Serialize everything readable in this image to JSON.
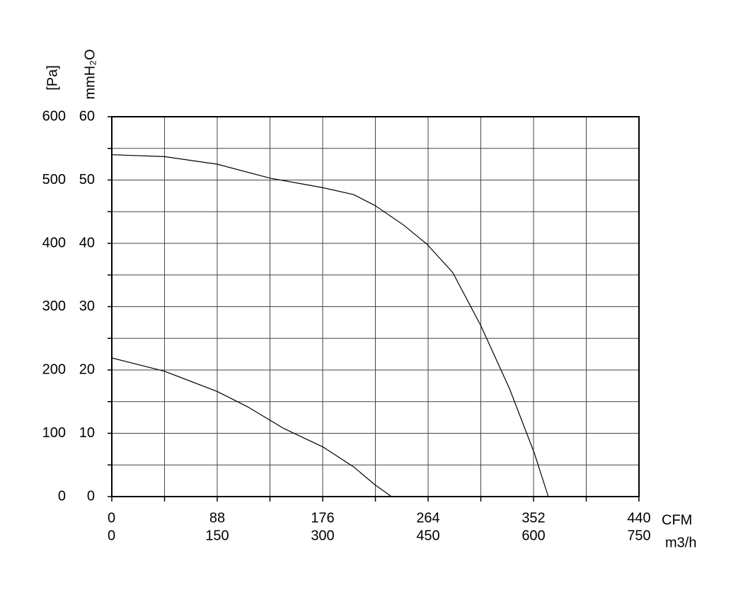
{
  "chart_data": {
    "type": "line",
    "y_label": "[Pa]",
    "y2_label": "mmH₂O",
    "x_label": "m3/h",
    "x2_label": "CFM",
    "xlim": [
      0,
      750
    ],
    "xticks": [
      0,
      150,
      300,
      450,
      600,
      750
    ],
    "x2lim": [
      0,
      440
    ],
    "x2ticks": [
      0,
      88,
      176,
      264,
      352,
      440
    ],
    "ylim": [
      0,
      600
    ],
    "yticks": [
      0,
      100,
      200,
      300,
      400,
      500,
      600
    ],
    "y2lim": [
      0,
      60
    ],
    "y2ticks": [
      0,
      10,
      20,
      30,
      40,
      50,
      60
    ],
    "xgrid": [
      0,
      75,
      150,
      225,
      300,
      375,
      450,
      525,
      600,
      675,
      750
    ],
    "ygrid": [
      0,
      50,
      100,
      150,
      200,
      250,
      300,
      350,
      400,
      450,
      500,
      550,
      600
    ],
    "grid": true,
    "series": [
      {
        "color": "#000000",
        "x": [
          0,
          75,
          150,
          225,
          300,
          344,
          374,
          415,
          448,
          485,
          525,
          566,
          601,
          621
        ],
        "values": [
          540,
          537,
          525,
          503,
          488,
          477,
          460,
          429,
          399,
          354,
          270,
          170,
          69,
          0
        ]
      },
      {
        "color": "#000000",
        "x": [
          0,
          75,
          150,
          193,
          244,
          301,
          344,
          374,
          398
        ],
        "values": [
          219,
          198,
          166,
          142,
          108,
          78,
          47,
          19,
          0
        ]
      }
    ]
  }
}
